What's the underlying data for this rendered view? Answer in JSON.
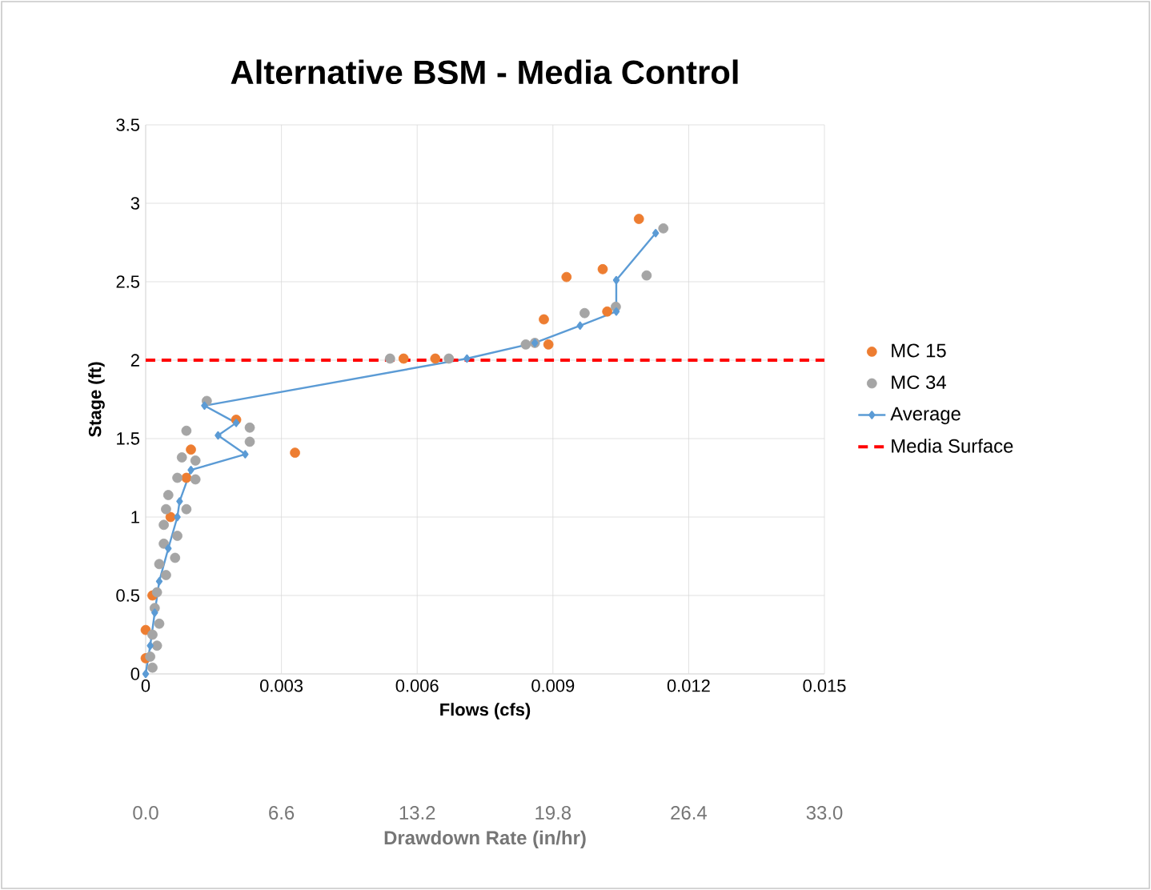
{
  "chart_data": {
    "type": "scatter",
    "title": "Alternative BSM - Media Control",
    "xlabel": "Flows (cfs)",
    "ylabel": "Stage (ft)",
    "x2label": "Drawdown Rate (in/hr)",
    "xlim": [
      0,
      0.015
    ],
    "xticks": [
      0,
      0.003,
      0.006,
      0.009,
      0.012,
      0.015
    ],
    "ylim": [
      0,
      3.5
    ],
    "yticks": [
      0,
      0.5,
      1,
      1.5,
      2,
      2.5,
      3,
      3.5
    ],
    "x2lim": [
      0,
      33
    ],
    "x2ticks": [
      {
        "value": 0,
        "label": "0.0"
      },
      6.6,
      13.2,
      19.8,
      26.4,
      {
        "value": 33,
        "label": "33.0"
      }
    ],
    "grid": true,
    "legend": "right",
    "series": [
      {
        "name": "MC 15",
        "type": "scatter",
        "color": "#ed7d31",
        "marker": "circle",
        "x": [
          0.0109,
          0.0101,
          0.0093,
          0.0088,
          0.0102,
          0.0089,
          0.0064,
          0.0057,
          0.0033,
          0.002,
          0.001,
          0.0009,
          0.00055,
          0.00015,
          0.0,
          0.0
        ],
        "values": [
          2.9,
          2.58,
          2.53,
          2.26,
          2.31,
          2.1,
          2.01,
          2.01,
          1.41,
          1.62,
          1.43,
          1.25,
          1.0,
          0.5,
          0.28,
          0.1
        ]
      },
      {
        "name": "MC 34",
        "type": "scatter",
        "color": "#a5a5a5",
        "marker": "circle",
        "x": [
          0.01144,
          0.01107,
          0.01039,
          0.0097,
          0.0086,
          0.0084,
          0.0067,
          0.0054,
          0.00135,
          0.0023,
          0.0023,
          0.0009,
          0.0008,
          0.0011,
          0.0007,
          0.0011,
          0.0005,
          0.0009,
          0.00045,
          0.0007,
          0.0004,
          0.00065,
          0.0004,
          0.00045,
          0.0003,
          0.00025,
          0.0002,
          0.0003,
          0.00015,
          0.00025,
          0.0001,
          0.00015
        ],
        "values": [
          2.84,
          2.54,
          2.34,
          2.3,
          2.11,
          2.1,
          2.01,
          2.01,
          1.74,
          1.57,
          1.48,
          1.55,
          1.38,
          1.36,
          1.25,
          1.24,
          1.14,
          1.05,
          1.05,
          0.88,
          0.95,
          0.74,
          0.83,
          0.63,
          0.7,
          0.52,
          0.42,
          0.32,
          0.25,
          0.18,
          0.11,
          0.04
        ]
      },
      {
        "name": "Average",
        "type": "line",
        "color": "#5b9bd5",
        "marker": "diamond",
        "line_style": "solid",
        "x": [
          0,
          0.0001,
          0.0002,
          0.0003,
          0.0005,
          0.0007,
          0.00075,
          0.001,
          0.0022,
          0.0016,
          0.002,
          0.0013,
          0.0071,
          0.0086,
          0.0096,
          0.0104,
          0.0104,
          0.01127
        ],
        "values": [
          0,
          0.18,
          0.39,
          0.59,
          0.8,
          1.0,
          1.1,
          1.3,
          1.4,
          1.52,
          1.6,
          1.71,
          2.01,
          2.11,
          2.22,
          2.31,
          2.51,
          2.81
        ]
      }
    ],
    "ref_lines": [
      {
        "axis": "y",
        "value": 2,
        "label": "Media Surface",
        "color": "#ff0000",
        "line_style": "dashed"
      }
    ]
  }
}
